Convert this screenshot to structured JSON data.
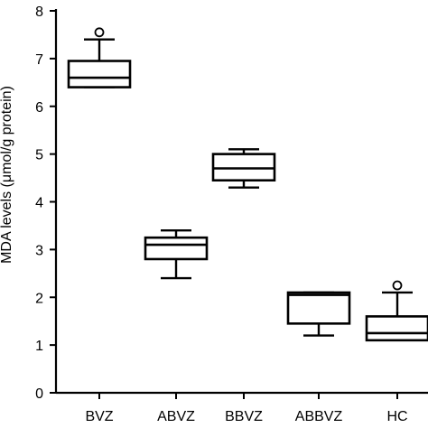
{
  "chart_data": {
    "type": "box",
    "ylabel": "MDA levels (μmol/g protein)",
    "ylim": [
      0,
      8
    ],
    "yticks": [
      0,
      1,
      2,
      3,
      4,
      5,
      6,
      7,
      8
    ],
    "categories": [
      "BVZ",
      "ABVZ",
      "BBVZ",
      "ABBVZ",
      "HC"
    ],
    "boxes": [
      {
        "category": "BVZ",
        "min": 6.4,
        "q1": 6.4,
        "median": 6.6,
        "q3": 6.95,
        "max": 7.4,
        "outliers": [
          7.55
        ]
      },
      {
        "category": "ABVZ",
        "min": 2.4,
        "q1": 2.8,
        "median": 3.1,
        "q3": 3.25,
        "max": 3.4,
        "outliers": []
      },
      {
        "category": "BBVZ",
        "min": 4.3,
        "q1": 4.45,
        "median": 4.7,
        "q3": 5.0,
        "max": 5.1,
        "outliers": []
      },
      {
        "category": "ABBVZ",
        "min": 1.2,
        "q1": 1.45,
        "median": 2.05,
        "q3": 2.1,
        "max": 2.1,
        "outliers": []
      },
      {
        "category": "HC",
        "min": 1.1,
        "q1": 1.1,
        "median": 1.25,
        "q3": 1.6,
        "max": 2.1,
        "outliers": [
          2.25
        ]
      }
    ]
  }
}
